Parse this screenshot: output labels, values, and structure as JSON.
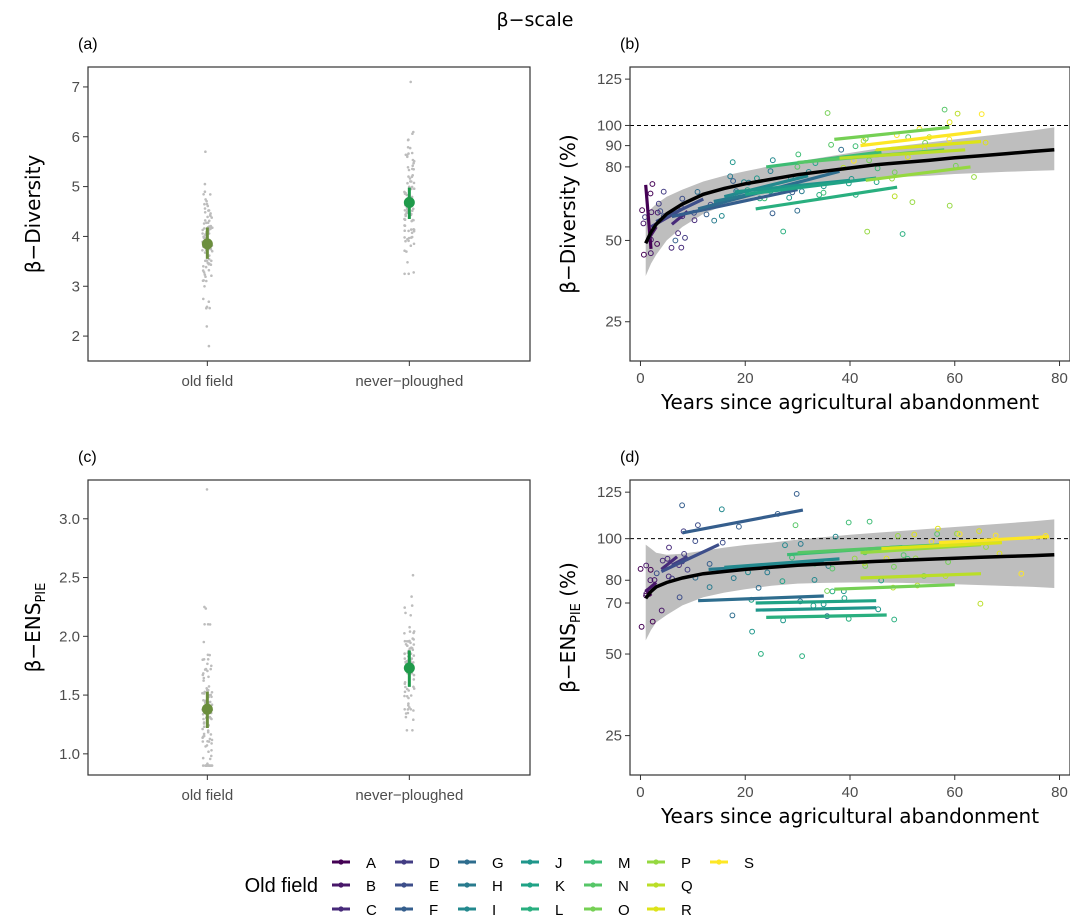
{
  "figure": {
    "title": "β−scale",
    "legend_title": "Old field"
  },
  "colors": {
    "old_field_point": "#6b8e3e",
    "never_ploughed_point": "#1f9a4a",
    "raw_points": "#bdbdbd",
    "ribbon": "#bebebe",
    "fit_line": "#000000",
    "palette": [
      "#440154",
      "#481769",
      "#472a7a",
      "#433d84",
      "#3d4e8a",
      "#355e8d",
      "#2e6d8e",
      "#297b8e",
      "#23898e",
      "#1f968b",
      "#20a386",
      "#29af7f",
      "#3dbc74",
      "#56c667",
      "#75d054",
      "#95d840",
      "#bade28",
      "#dde318",
      "#fde725"
    ]
  },
  "legend": {
    "levels": [
      "A",
      "B",
      "C",
      "D",
      "E",
      "F",
      "G",
      "H",
      "I",
      "J",
      "K",
      "L",
      "M",
      "N",
      "O",
      "P",
      "Q",
      "R",
      "S"
    ]
  },
  "chart_data": [
    {
      "panel": "(a)",
      "type": "scatter",
      "categories": [
        "old field",
        "never−ploughed"
      ],
      "ylabel": "β−Diversity",
      "ylim": [
        1.5,
        7.4
      ],
      "yticks": [
        2,
        3,
        4,
        5,
        6,
        7
      ],
      "estimates": [
        {
          "category": "old field",
          "mean": 3.85,
          "lower": 3.55,
          "upper": 4.18
        },
        {
          "category": "never−ploughed",
          "mean": 4.68,
          "lower": 4.35,
          "upper": 4.98
        }
      ],
      "raw": {
        "old field": {
          "min": 1.8,
          "max": 5.7,
          "n": 95,
          "center": 3.9
        },
        "never−ploughed": {
          "min": 3.25,
          "max": 7.1,
          "n": 85,
          "center": 4.7
        }
      }
    },
    {
      "panel": "(b)",
      "type": "line",
      "xlabel": "Years since agricultural abandonment",
      "ylabel": "β−Diversity (%)",
      "xlim": [
        -2,
        82
      ],
      "xticks": [
        0,
        20,
        40,
        60,
        80
      ],
      "yticks": [
        25,
        50,
        80,
        90,
        100,
        125
      ],
      "y_scale": "sqrt",
      "reference_line": 100,
      "fit": {
        "x": [
          1,
          2,
          3,
          5,
          8,
          12,
          16,
          20,
          25,
          30,
          35,
          40,
          45,
          50,
          55,
          60,
          65,
          70,
          75,
          79
        ],
        "y": [
          49,
          53,
          56,
          60,
          64,
          68,
          70.5,
          72.5,
          74.5,
          76.5,
          78,
          79.5,
          81,
          82,
          83,
          84.2,
          85.2,
          86.2,
          87.2,
          88
        ]
      },
      "ribbon_lower": [
        38,
        42,
        45,
        50,
        55,
        60,
        63.5,
        66,
        68.5,
        70.5,
        72,
        73.5,
        74.5,
        75.5,
        76,
        76.8,
        77.3,
        77.8,
        78.2,
        78.5
      ],
      "ribbon_upper": [
        59,
        62,
        64,
        67,
        70,
        73.5,
        76,
        78,
        80.5,
        82.5,
        84.5,
        86.5,
        88.5,
        90,
        91.5,
        93,
        94.5,
        96,
        97.5,
        99
      ],
      "series": [
        {
          "name": "A",
          "x": [
            1,
            2
          ],
          "y": [
            72,
            47
          ]
        },
        {
          "name": "B",
          "x": [
            1,
            3
          ],
          "y": [
            49,
            55
          ]
        },
        {
          "name": "C",
          "x": [
            6,
            9
          ],
          "y": [
            56,
            61
          ]
        },
        {
          "name": "D",
          "x": [
            2,
            8
          ],
          "y": [
            55,
            62
          ]
        },
        {
          "name": "E",
          "x": [
            3,
            12
          ],
          "y": [
            57,
            66
          ]
        },
        {
          "name": "F",
          "x": [
            6,
            30
          ],
          "y": [
            59,
            70
          ]
        },
        {
          "name": "G",
          "x": [
            11,
            38
          ],
          "y": [
            62,
            78
          ]
        },
        {
          "name": "H",
          "x": [
            14,
            30
          ],
          "y": [
            65,
            72
          ]
        },
        {
          "name": "I",
          "x": [
            16,
            32
          ],
          "y": [
            67,
            76
          ]
        },
        {
          "name": "J",
          "x": [
            18,
            40
          ],
          "y": [
            69,
            74
          ]
        },
        {
          "name": "K",
          "x": [
            20,
            45
          ],
          "y": [
            68,
            75
          ]
        },
        {
          "name": "L",
          "x": [
            22,
            49
          ],
          "y": [
            62,
            71
          ]
        },
        {
          "name": "M",
          "x": [
            24,
            46
          ],
          "y": [
            80,
            87
          ]
        },
        {
          "name": "N",
          "x": [
            30,
            58
          ],
          "y": [
            82,
            88
          ]
        },
        {
          "name": "O",
          "x": [
            37,
            59
          ],
          "y": [
            93,
            99
          ]
        },
        {
          "name": "P",
          "x": [
            43,
            63
          ],
          "y": [
            74,
            80
          ]
        },
        {
          "name": "Q",
          "x": [
            38,
            62
          ],
          "y": [
            84,
            88
          ]
        },
        {
          "name": "R",
          "x": [
            45,
            65
          ],
          "y": [
            88,
            92
          ]
        },
        {
          "name": "S",
          "x": [
            42,
            65
          ],
          "y": [
            90,
            97
          ]
        }
      ]
    },
    {
      "panel": "(c)",
      "type": "scatter",
      "categories": [
        "old field",
        "never−ploughed"
      ],
      "ylabel": "β−ENS",
      "ylabel_subscript": "PIE",
      "ylim": [
        0.82,
        3.33
      ],
      "yticks": [
        1.0,
        1.5,
        2.0,
        2.5,
        3.0
      ],
      "ytick_labels": [
        "1.0",
        "1.5",
        "2.0",
        "2.5",
        "3.0"
      ],
      "estimates": [
        {
          "category": "old field",
          "mean": 1.38,
          "lower": 1.22,
          "upper": 1.53
        },
        {
          "category": "never−ploughed",
          "mean": 1.73,
          "lower": 1.57,
          "upper": 1.88
        }
      ],
      "raw": {
        "old field": {
          "min": 0.9,
          "max": 3.25,
          "n": 95,
          "center": 1.45
        },
        "never−ploughed": {
          "min": 1.2,
          "max": 2.52,
          "n": 85,
          "center": 1.75
        }
      }
    },
    {
      "panel": "(d)",
      "type": "line",
      "xlabel": "Years since agricultural abandonment",
      "ylabel": "β−ENS",
      "ylabel_subscript": "PIE",
      "ylabel_suffix": " (%)",
      "xlim": [
        -2,
        82
      ],
      "xticks": [
        0,
        20,
        40,
        60,
        80
      ],
      "yticks": [
        25,
        50,
        70,
        80,
        100,
        125
      ],
      "y_scale": "sqrt",
      "reference_line": 100,
      "fit": {
        "x": [
          1,
          2,
          3,
          5,
          8,
          12,
          16,
          20,
          25,
          30,
          35,
          40,
          45,
          50,
          55,
          60,
          65,
          70,
          75,
          79
        ],
        "y": [
          72,
          75,
          77,
          79,
          81,
          83,
          84,
          85,
          86,
          87,
          87.6,
          88.2,
          88.8,
          89.3,
          89.8,
          90.3,
          90.8,
          91.2,
          91.6,
          92
        ]
      },
      "ribbon_lower": [
        55,
        59,
        62,
        65,
        69,
        72.5,
        74.5,
        76,
        77.5,
        78.5,
        78.8,
        79,
        79,
        78.8,
        78.5,
        78.2,
        77.8,
        77.4,
        77,
        76.5
      ],
      "ribbon_upper": [
        97,
        95,
        93,
        92,
        92.5,
        94,
        95.5,
        96.8,
        98,
        99.5,
        100.8,
        102,
        103,
        104,
        105,
        106,
        107,
        108,
        109,
        110
      ],
      "series": [
        {
          "name": "A",
          "x": [
            1,
            2
          ],
          "y": [
            76,
            73
          ]
        },
        {
          "name": "B",
          "x": [
            1,
            3
          ],
          "y": [
            75,
            79
          ]
        },
        {
          "name": "C",
          "x": [
            4,
            7
          ],
          "y": [
            85,
            91
          ]
        },
        {
          "name": "D",
          "x": [
            6,
            9
          ],
          "y": [
            87,
            91
          ]
        },
        {
          "name": "E",
          "x": [
            4,
            15
          ],
          "y": [
            84,
            97
          ]
        },
        {
          "name": "F",
          "x": [
            8,
            31
          ],
          "y": [
            103,
            115
          ]
        },
        {
          "name": "G",
          "x": [
            11,
            35
          ],
          "y": [
            71,
            73
          ]
        },
        {
          "name": "H",
          "x": [
            13,
            35
          ],
          "y": [
            85,
            88
          ]
        },
        {
          "name": "I",
          "x": [
            16,
            38
          ],
          "y": [
            86,
            90
          ]
        },
        {
          "name": "J",
          "x": [
            22,
            45
          ],
          "y": [
            67,
            68
          ]
        },
        {
          "name": "K",
          "x": [
            22,
            45
          ],
          "y": [
            70,
            71
          ]
        },
        {
          "name": "L",
          "x": [
            24,
            47
          ],
          "y": [
            64,
            65
          ]
        },
        {
          "name": "M",
          "x": [
            28,
            50
          ],
          "y": [
            92,
            96
          ]
        },
        {
          "name": "N",
          "x": [
            30,
            58
          ],
          "y": [
            93,
            97
          ]
        },
        {
          "name": "O",
          "x": [
            37,
            60
          ],
          "y": [
            76,
            78
          ]
        },
        {
          "name": "P",
          "x": [
            42,
            65
          ],
          "y": [
            93,
            97
          ]
        },
        {
          "name": "Q",
          "x": [
            42,
            65
          ],
          "y": [
            81,
            83
          ]
        },
        {
          "name": "R",
          "x": [
            46,
            69
          ],
          "y": [
            95,
            98
          ]
        },
        {
          "name": "S",
          "x": [
            57,
            78
          ],
          "y": [
            98,
            101
          ]
        }
      ]
    }
  ]
}
